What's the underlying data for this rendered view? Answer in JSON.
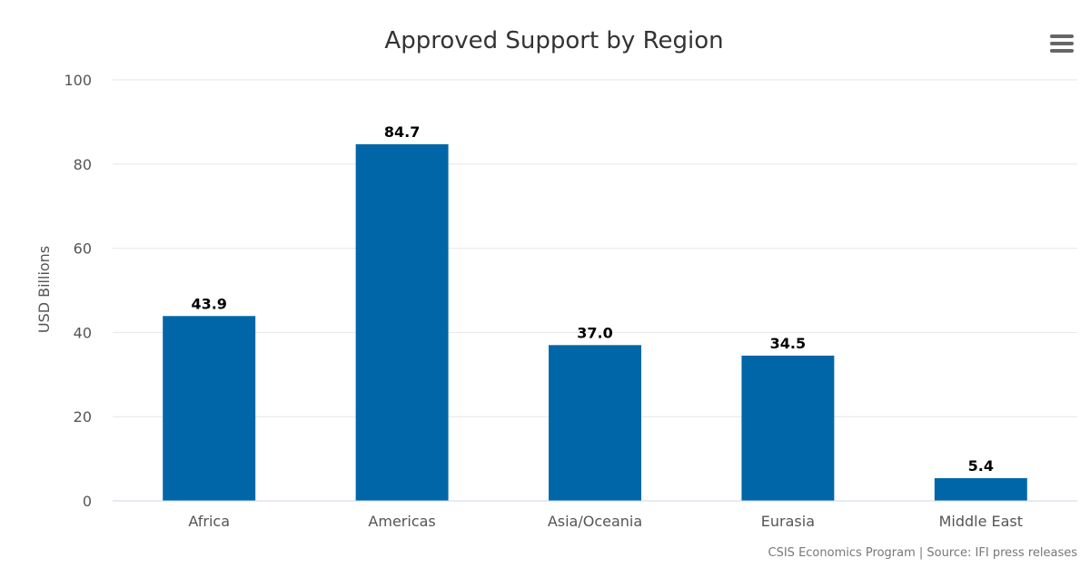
{
  "chart_data": {
    "type": "bar",
    "title": "Approved Support by Region",
    "ylabel": "USD Billions",
    "xlabel": "",
    "categories": [
      "Africa",
      "Americas",
      "Asia/Oceania",
      "Eurasia",
      "Middle East"
    ],
    "values": [
      43.9,
      84.7,
      37.0,
      34.5,
      5.4
    ],
    "value_labels": [
      "43.9",
      "84.7",
      "37.0",
      "34.5",
      "5.4"
    ],
    "ylim": [
      0,
      100
    ],
    "yticks": [
      0,
      20,
      40,
      60,
      80,
      100
    ],
    "ytick_labels": [
      "0",
      "20",
      "40",
      "60",
      "80",
      "100"
    ],
    "grid": true,
    "legend": "none",
    "bar_color": "#0066a8",
    "credits": "CSIS Economics Program | Source: IFI press releases"
  },
  "ui": {
    "menu_icon": "hamburger-menu-icon"
  }
}
